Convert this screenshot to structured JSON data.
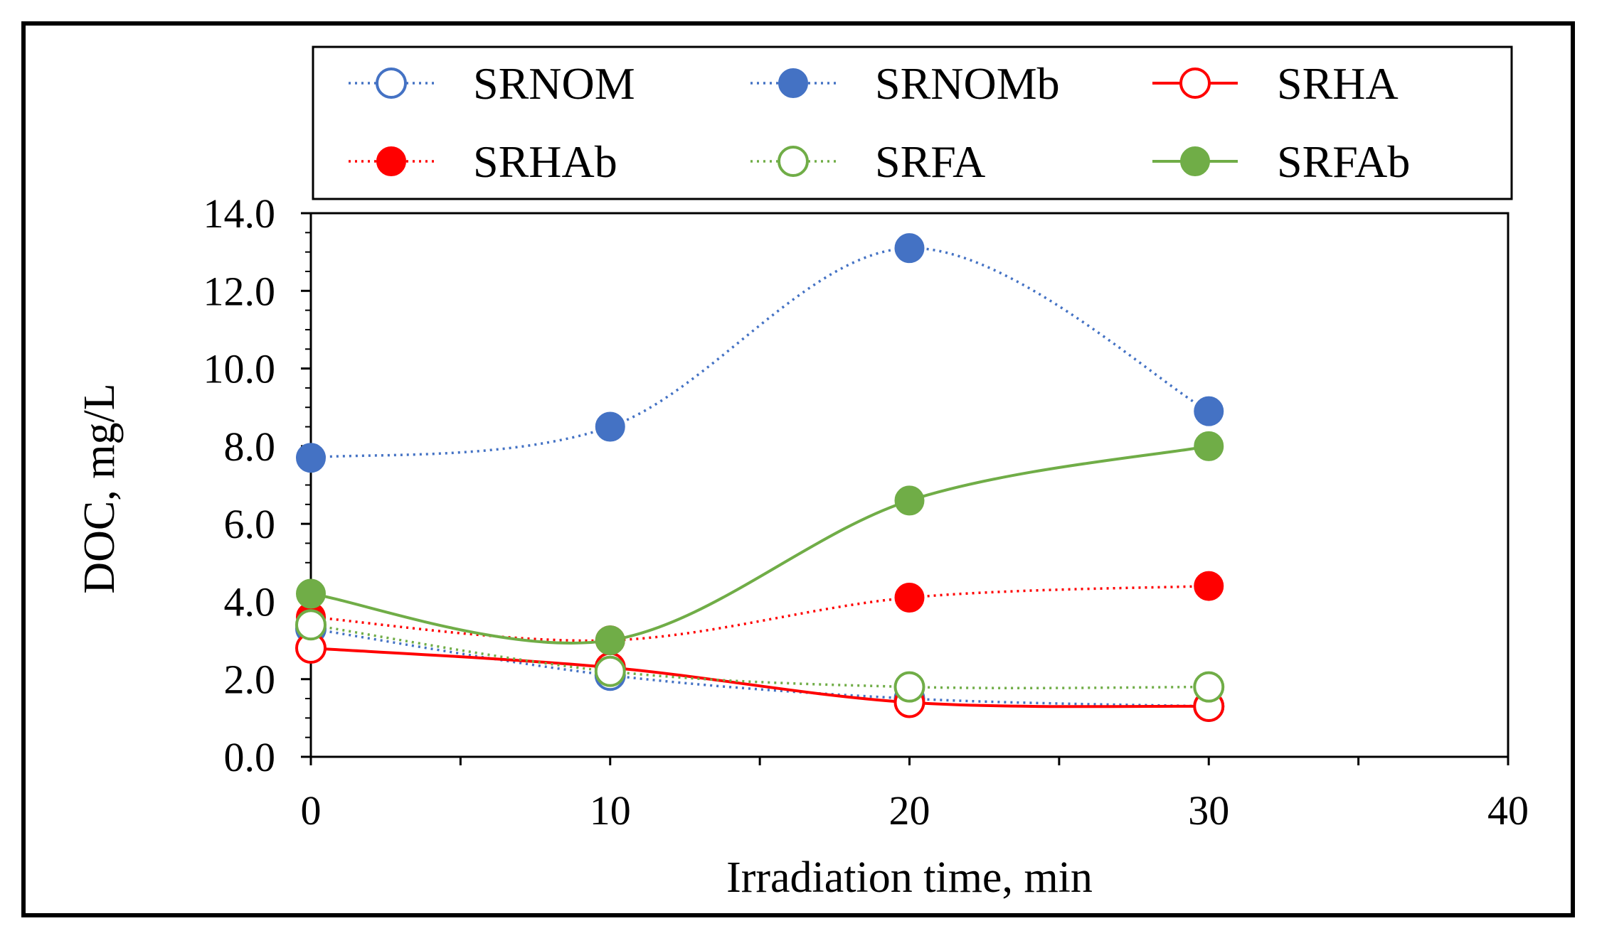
{
  "chart_data": {
    "type": "line",
    "title": "",
    "xlabel": "Irradiation time, min",
    "ylabel": "DOC, mg/L",
    "xlim": [
      0,
      40
    ],
    "ylim": [
      0,
      14
    ],
    "x_ticks": [
      0,
      10,
      20,
      30,
      40
    ],
    "x_tick_labels": [
      "0",
      "10",
      "20",
      "30",
      "40"
    ],
    "y_ticks": [
      0,
      2,
      4,
      6,
      8,
      10,
      12,
      14
    ],
    "y_tick_labels": [
      "0.0",
      "2.0",
      "4.0",
      "6.0",
      "8.0",
      "10.0",
      "12.0",
      "14.0"
    ],
    "grid": false,
    "legend_position": "top",
    "series": [
      {
        "name": "SRNOM",
        "color": "#4472C4",
        "line": "dotted",
        "marker": "open",
        "x": [
          0,
          10,
          20,
          30
        ],
        "y": [
          3.3,
          2.1,
          1.5,
          1.3
        ]
      },
      {
        "name": "SRNOMb",
        "color": "#4472C4",
        "line": "dotted",
        "marker": "filled",
        "x": [
          0,
          10,
          20,
          30
        ],
        "y": [
          7.7,
          8.5,
          13.1,
          8.9
        ]
      },
      {
        "name": "SRHA",
        "color": "#FF0000",
        "line": "solid",
        "marker": "open",
        "x": [
          0,
          10,
          20,
          30
        ],
        "y": [
          2.8,
          2.3,
          1.4,
          1.3
        ]
      },
      {
        "name": "SRHAb",
        "color": "#FF0000",
        "line": "dotted",
        "marker": "filled",
        "x": [
          0,
          10,
          20,
          30
        ],
        "y": [
          3.6,
          3.0,
          4.1,
          4.4
        ]
      },
      {
        "name": "SRFA",
        "color": "#70AD47",
        "line": "dotted",
        "marker": "open",
        "x": [
          0,
          10,
          20,
          30
        ],
        "y": [
          3.4,
          2.2,
          1.8,
          1.8
        ]
      },
      {
        "name": "SRFAb",
        "color": "#70AD47",
        "line": "solid",
        "marker": "filled",
        "x": [
          0,
          10,
          20,
          30
        ],
        "y": [
          4.2,
          3.0,
          6.6,
          8.0
        ]
      }
    ]
  }
}
